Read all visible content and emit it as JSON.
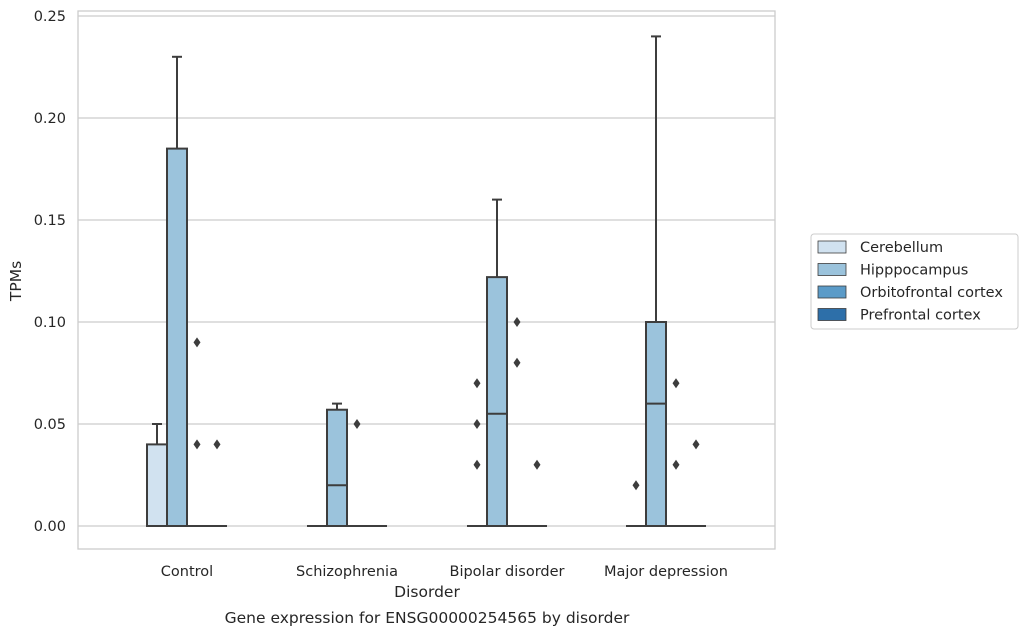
{
  "chart_data": {
    "type": "box",
    "caption": "Gene expression for ENSG00000254565 by disorder",
    "xlabel": "Disorder",
    "ylabel": "TPMs",
    "ylim": [
      -0.012,
      0.252
    ],
    "yticks": [
      0.0,
      0.05,
      0.1,
      0.15,
      0.2,
      0.25
    ],
    "ytick_labels": [
      "0.00",
      "0.05",
      "0.10",
      "0.15",
      "0.20",
      "0.25"
    ],
    "grid": "horizontal",
    "legend_position": "right",
    "categories": [
      "Control",
      "Schizophrenia",
      "Bipolar disorder",
      "Major depression"
    ],
    "series": [
      {
        "name": "Cerebellum",
        "color": "#d1e2f0",
        "boxes": [
          {
            "q1": 0,
            "median": 0,
            "q3": 0.04,
            "whisker_low": 0,
            "whisker_high": 0.05,
            "outliers": []
          },
          {
            "q1": 0,
            "median": 0,
            "q3": 0,
            "whisker_low": 0,
            "whisker_high": 0,
            "outliers": []
          },
          {
            "q1": 0,
            "median": 0,
            "q3": 0,
            "whisker_low": 0,
            "whisker_high": 0,
            "outliers": [
              0.03,
              0.05,
              0.07
            ]
          },
          {
            "q1": 0,
            "median": 0,
            "q3": 0,
            "whisker_low": 0,
            "whisker_high": 0,
            "outliers": [
              0.02
            ]
          }
        ]
      },
      {
        "name": "Hipppocampus",
        "color": "#9bc3dc",
        "boxes": [
          {
            "q1": 0,
            "median": 0,
            "q3": 0.185,
            "whisker_low": 0,
            "whisker_high": 0.23,
            "outliers": []
          },
          {
            "q1": 0,
            "median": 0.02,
            "q3": 0.057,
            "whisker_low": 0,
            "whisker_high": 0.06,
            "outliers": []
          },
          {
            "q1": 0,
            "median": 0.055,
            "q3": 0.122,
            "whisker_low": 0,
            "whisker_high": 0.16,
            "outliers": []
          },
          {
            "q1": 0,
            "median": 0.06,
            "q3": 0.1,
            "whisker_low": 0,
            "whisker_high": 0.24,
            "outliers": []
          }
        ]
      },
      {
        "name": "Orbitofrontal cortex",
        "color": "#5b9bc8",
        "boxes": [
          {
            "q1": 0,
            "median": 0,
            "q3": 0,
            "whisker_low": 0,
            "whisker_high": 0,
            "outliers": [
              0.04,
              0.09
            ]
          },
          {
            "q1": 0,
            "median": 0,
            "q3": 0,
            "whisker_low": 0,
            "whisker_high": 0,
            "outliers": [
              0.05
            ]
          },
          {
            "q1": 0,
            "median": 0,
            "q3": 0,
            "whisker_low": 0,
            "whisker_high": 0,
            "outliers": [
              0.08,
              0.1
            ]
          },
          {
            "q1": 0,
            "median": 0,
            "q3": 0,
            "whisker_low": 0,
            "whisker_high": 0,
            "outliers": [
              0.03,
              0.07
            ]
          }
        ]
      },
      {
        "name": "Prefrontal cortex",
        "color": "#2d6fa9",
        "boxes": [
          {
            "q1": 0,
            "median": 0,
            "q3": 0,
            "whisker_low": 0,
            "whisker_high": 0,
            "outliers": [
              0.04
            ]
          },
          {
            "q1": 0,
            "median": 0,
            "q3": 0,
            "whisker_low": 0,
            "whisker_high": 0,
            "outliers": []
          },
          {
            "q1": 0,
            "median": 0,
            "q3": 0,
            "whisker_low": 0,
            "whisker_high": 0,
            "outliers": [
              0.03
            ]
          },
          {
            "q1": 0,
            "median": 0,
            "q3": 0,
            "whisker_low": 0,
            "whisker_high": 0,
            "outliers": [
              0.04
            ]
          }
        ]
      }
    ],
    "colors": {
      "grid": "#cccccc",
      "frame": "#cccccc",
      "box_edge": "#3d3d3d",
      "text": "#262626"
    }
  }
}
